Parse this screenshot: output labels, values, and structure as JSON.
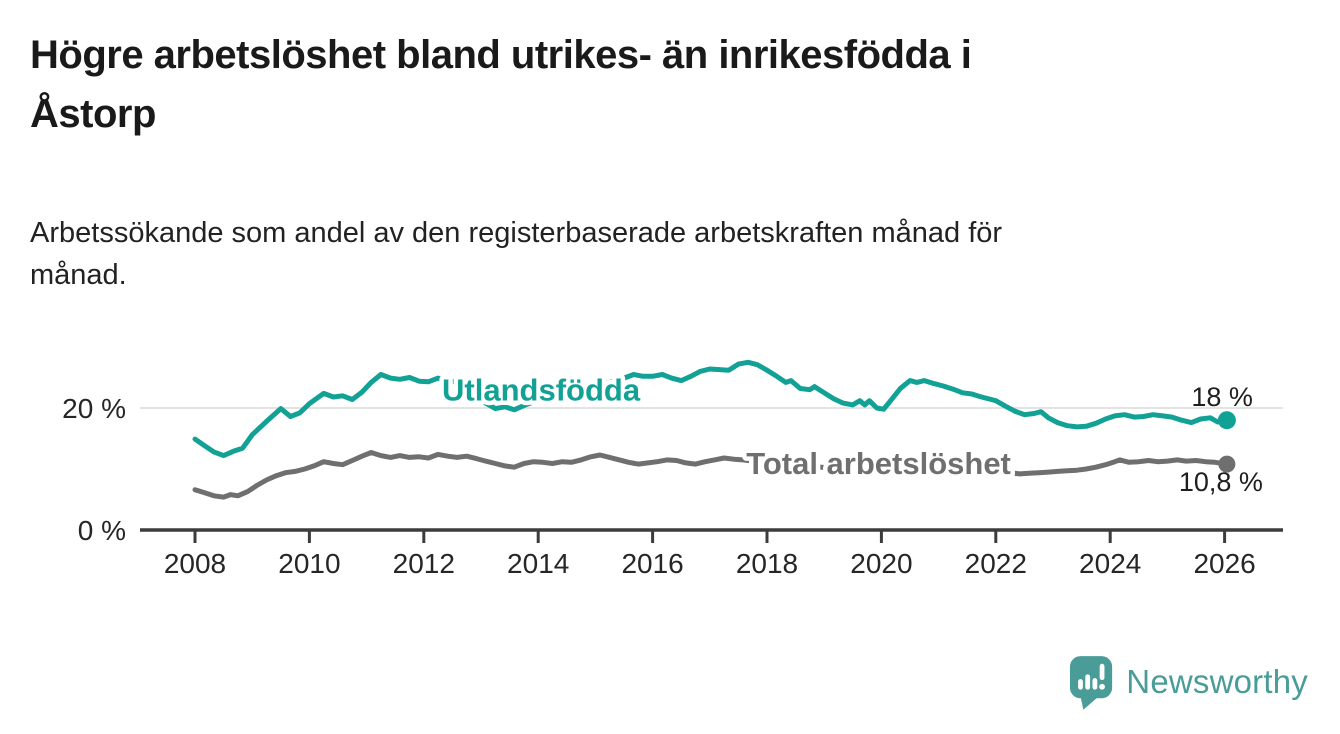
{
  "header": {
    "title_lines": [
      "Högre arbetslöshet bland utrikes- än inrikesfödda i",
      "Åstorp"
    ],
    "subtitle_lines": [
      "Arbetssökande som andel av den registerbaserade arbetskraften månad för",
      "månad."
    ]
  },
  "branding": {
    "logo_text": "Newsworthy",
    "color": "#4A9C98"
  },
  "chart_data": {
    "type": "line",
    "title": "Högre arbetslöshet bland utrikes- än inrikesfödda i Åstorp",
    "subtitle": "Arbetssökande som andel av den registerbaserade arbetskraften månad för månad.",
    "xlabel": "",
    "ylabel": "%",
    "x_range": [
      2007.0,
      2027.05
    ],
    "ylim": [
      0,
      30
    ],
    "grid": "y-only-at-20",
    "legend_position": "inline-on-lines",
    "x_axis": {
      "tick_years": [
        2008,
        2010,
        2012,
        2014,
        2016,
        2018,
        2020,
        2022,
        2024,
        2026
      ],
      "tick_labels": [
        "2008",
        "2010",
        "2012",
        "2014",
        "2016",
        "2018",
        "2020",
        "2022",
        "2024",
        "2026"
      ]
    },
    "y_axis": {
      "ticks": [
        {
          "value": 20,
          "label": "20 %"
        },
        {
          "value": 0,
          "label": "0 %"
        }
      ]
    },
    "series": [
      {
        "name": "Utlandsfödda",
        "color": "#12A195",
        "end_label": "18 %",
        "end_value": 18.0,
        "label_anchor": {
          "year": 2014.05,
          "pct": 23.0
        },
        "points": [
          [
            2008.0,
            14.9
          ],
          [
            2008.17,
            13.8
          ],
          [
            2008.33,
            12.8
          ],
          [
            2008.5,
            12.2
          ],
          [
            2008.67,
            12.9
          ],
          [
            2008.83,
            13.4
          ],
          [
            2009.0,
            15.6
          ],
          [
            2009.25,
            17.8
          ],
          [
            2009.5,
            19.9
          ],
          [
            2009.67,
            18.6
          ],
          [
            2009.83,
            19.2
          ],
          [
            2010.0,
            20.7
          ],
          [
            2010.25,
            22.4
          ],
          [
            2010.42,
            21.8
          ],
          [
            2010.58,
            22.0
          ],
          [
            2010.75,
            21.4
          ],
          [
            2010.92,
            22.6
          ],
          [
            2011.08,
            24.2
          ],
          [
            2011.25,
            25.5
          ],
          [
            2011.42,
            24.9
          ],
          [
            2011.58,
            24.7
          ],
          [
            2011.75,
            25.0
          ],
          [
            2011.92,
            24.4
          ],
          [
            2012.08,
            24.3
          ],
          [
            2012.25,
            24.9
          ],
          [
            2012.42,
            24.3
          ],
          [
            2012.58,
            24.4
          ],
          [
            2012.75,
            23.7
          ],
          [
            2012.92,
            22.5
          ],
          [
            2013.08,
            20.8
          ],
          [
            2013.25,
            19.9
          ],
          [
            2013.42,
            20.2
          ],
          [
            2013.58,
            19.7
          ],
          [
            2013.75,
            20.4
          ],
          [
            2014.0,
            21.3
          ],
          [
            2014.25,
            22.1
          ],
          [
            2014.5,
            22.7
          ],
          [
            2014.75,
            23.2
          ],
          [
            2015.0,
            23.7
          ],
          [
            2015.25,
            24.2
          ],
          [
            2015.5,
            24.9
          ],
          [
            2015.67,
            25.5
          ],
          [
            2015.83,
            25.2
          ],
          [
            2016.0,
            25.2
          ],
          [
            2016.17,
            25.5
          ],
          [
            2016.33,
            24.9
          ],
          [
            2016.5,
            24.5
          ],
          [
            2016.67,
            25.2
          ],
          [
            2016.83,
            26.0
          ],
          [
            2017.0,
            26.4
          ],
          [
            2017.17,
            26.3
          ],
          [
            2017.33,
            26.2
          ],
          [
            2017.5,
            27.2
          ],
          [
            2017.67,
            27.5
          ],
          [
            2017.83,
            27.1
          ],
          [
            2018.0,
            26.2
          ],
          [
            2018.17,
            25.2
          ],
          [
            2018.33,
            24.2
          ],
          [
            2018.42,
            24.5
          ],
          [
            2018.58,
            23.2
          ],
          [
            2018.75,
            23.0
          ],
          [
            2018.83,
            23.5
          ],
          [
            2019.0,
            22.5
          ],
          [
            2019.17,
            21.5
          ],
          [
            2019.33,
            20.8
          ],
          [
            2019.5,
            20.5
          ],
          [
            2019.62,
            21.2
          ],
          [
            2019.71,
            20.5
          ],
          [
            2019.79,
            21.2
          ],
          [
            2019.92,
            20.0
          ],
          [
            2020.04,
            19.8
          ],
          [
            2020.17,
            21.3
          ],
          [
            2020.33,
            23.2
          ],
          [
            2020.5,
            24.5
          ],
          [
            2020.62,
            24.2
          ],
          [
            2020.75,
            24.5
          ],
          [
            2020.92,
            24.0
          ],
          [
            2021.08,
            23.6
          ],
          [
            2021.25,
            23.1
          ],
          [
            2021.42,
            22.5
          ],
          [
            2021.58,
            22.3
          ],
          [
            2021.75,
            21.8
          ],
          [
            2021.92,
            21.4
          ],
          [
            2022.0,
            21.2
          ],
          [
            2022.17,
            20.3
          ],
          [
            2022.33,
            19.5
          ],
          [
            2022.5,
            18.9
          ],
          [
            2022.67,
            19.1
          ],
          [
            2022.79,
            19.4
          ],
          [
            2022.92,
            18.4
          ],
          [
            2023.08,
            17.6
          ],
          [
            2023.25,
            17.1
          ],
          [
            2023.42,
            16.9
          ],
          [
            2023.58,
            17.0
          ],
          [
            2023.75,
            17.5
          ],
          [
            2023.92,
            18.2
          ],
          [
            2024.08,
            18.7
          ],
          [
            2024.25,
            18.9
          ],
          [
            2024.42,
            18.5
          ],
          [
            2024.58,
            18.6
          ],
          [
            2024.75,
            18.9
          ],
          [
            2024.92,
            18.7
          ],
          [
            2025.08,
            18.5
          ],
          [
            2025.25,
            18.0
          ],
          [
            2025.42,
            17.6
          ],
          [
            2025.58,
            18.2
          ],
          [
            2025.75,
            18.4
          ],
          [
            2025.88,
            17.7
          ],
          [
            2026.04,
            18.0
          ]
        ]
      },
      {
        "name": "Total arbetslöshet",
        "color": "#6F6F6F",
        "end_label": "10,8 %",
        "end_value": 10.8,
        "label_anchor": {
          "year": 2019.95,
          "pct": 11.0
        },
        "points": [
          [
            2008.0,
            6.6
          ],
          [
            2008.17,
            6.1
          ],
          [
            2008.33,
            5.6
          ],
          [
            2008.5,
            5.4
          ],
          [
            2008.62,
            5.8
          ],
          [
            2008.75,
            5.6
          ],
          [
            2008.92,
            6.3
          ],
          [
            2009.08,
            7.3
          ],
          [
            2009.25,
            8.2
          ],
          [
            2009.42,
            8.9
          ],
          [
            2009.58,
            9.4
          ],
          [
            2009.75,
            9.6
          ],
          [
            2009.92,
            10.0
          ],
          [
            2010.08,
            10.5
          ],
          [
            2010.25,
            11.2
          ],
          [
            2010.42,
            10.9
          ],
          [
            2010.58,
            10.7
          ],
          [
            2010.75,
            11.4
          ],
          [
            2010.92,
            12.1
          ],
          [
            2011.08,
            12.7
          ],
          [
            2011.25,
            12.2
          ],
          [
            2011.42,
            11.9
          ],
          [
            2011.58,
            12.2
          ],
          [
            2011.75,
            11.9
          ],
          [
            2011.92,
            12.0
          ],
          [
            2012.08,
            11.8
          ],
          [
            2012.25,
            12.4
          ],
          [
            2012.42,
            12.1
          ],
          [
            2012.58,
            11.9
          ],
          [
            2012.75,
            12.1
          ],
          [
            2012.92,
            11.7
          ],
          [
            2013.08,
            11.3
          ],
          [
            2013.25,
            10.9
          ],
          [
            2013.42,
            10.5
          ],
          [
            2013.58,
            10.3
          ],
          [
            2013.75,
            10.9
          ],
          [
            2013.92,
            11.2
          ],
          [
            2014.08,
            11.1
          ],
          [
            2014.25,
            10.9
          ],
          [
            2014.42,
            11.2
          ],
          [
            2014.58,
            11.1
          ],
          [
            2014.75,
            11.5
          ],
          [
            2014.92,
            12.0
          ],
          [
            2015.08,
            12.3
          ],
          [
            2015.25,
            11.9
          ],
          [
            2015.42,
            11.5
          ],
          [
            2015.58,
            11.1
          ],
          [
            2015.75,
            10.8
          ],
          [
            2015.92,
            11.0
          ],
          [
            2016.08,
            11.2
          ],
          [
            2016.25,
            11.5
          ],
          [
            2016.42,
            11.4
          ],
          [
            2016.58,
            11.0
          ],
          [
            2016.75,
            10.8
          ],
          [
            2016.92,
            11.2
          ],
          [
            2017.08,
            11.5
          ],
          [
            2017.25,
            11.8
          ],
          [
            2017.42,
            11.6
          ],
          [
            2017.58,
            11.5
          ],
          [
            2017.83,
            11.2
          ],
          [
            2018.17,
            11.0
          ],
          [
            2018.5,
            10.7
          ],
          [
            2018.83,
            10.4
          ],
          [
            2019.17,
            10.1
          ],
          [
            2019.5,
            10.0
          ],
          [
            2019.83,
            10.3
          ],
          [
            2020.17,
            10.9
          ],
          [
            2020.5,
            11.4
          ],
          [
            2020.83,
            11.3
          ],
          [
            2021.17,
            10.9
          ],
          [
            2021.5,
            10.4
          ],
          [
            2021.83,
            9.9
          ],
          [
            2022.17,
            9.5
          ],
          [
            2022.42,
            9.2
          ],
          [
            2022.58,
            9.3
          ],
          [
            2022.75,
            9.4
          ],
          [
            2022.92,
            9.5
          ],
          [
            2023.08,
            9.6
          ],
          [
            2023.25,
            9.7
          ],
          [
            2023.42,
            9.8
          ],
          [
            2023.58,
            10.0
          ],
          [
            2023.75,
            10.3
          ],
          [
            2023.92,
            10.7
          ],
          [
            2024.08,
            11.2
          ],
          [
            2024.17,
            11.5
          ],
          [
            2024.33,
            11.1
          ],
          [
            2024.5,
            11.2
          ],
          [
            2024.67,
            11.4
          ],
          [
            2024.83,
            11.2
          ],
          [
            2025.0,
            11.3
          ],
          [
            2025.17,
            11.5
          ],
          [
            2025.33,
            11.3
          ],
          [
            2025.5,
            11.4
          ],
          [
            2025.67,
            11.2
          ],
          [
            2025.83,
            11.1
          ],
          [
            2026.04,
            10.8
          ]
        ]
      }
    ]
  }
}
